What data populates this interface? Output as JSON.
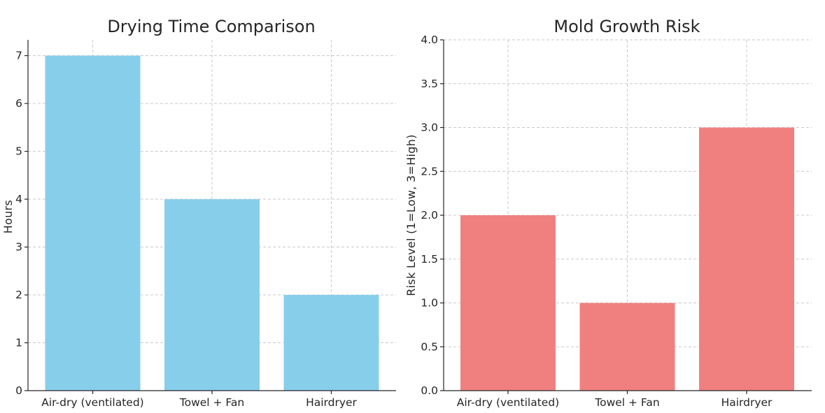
{
  "chart_data": [
    {
      "type": "bar",
      "title": "Drying Time Comparison",
      "xlabel": "",
      "ylabel": "Hours",
      "categories": [
        "Air-dry (ventilated)",
        "Towel + Fan",
        "Hairdryer"
      ],
      "values": [
        7,
        4,
        2
      ],
      "ylim": [
        0,
        7.33
      ],
      "yticks": [
        0,
        1,
        2,
        3,
        4,
        5,
        6,
        7
      ],
      "ytick_labels": [
        "0",
        "1",
        "2",
        "3",
        "4",
        "5",
        "6",
        "7"
      ],
      "bar_color": "#87ceeb",
      "grid": true
    },
    {
      "type": "bar",
      "title": "Mold Growth Risk",
      "xlabel": "",
      "ylabel": "Risk Level (1=Low, 3=High)",
      "categories": [
        "Air-dry (ventilated)",
        "Towel + Fan",
        "Hairdryer"
      ],
      "values": [
        2,
        1,
        3
      ],
      "ylim": [
        0,
        4.0
      ],
      "yticks": [
        0,
        0.5,
        1,
        1.5,
        2,
        2.5,
        3,
        3.5,
        4
      ],
      "ytick_labels": [
        "0.0",
        "0.5",
        "1.0",
        "1.5",
        "2.0",
        "2.5",
        "3.0",
        "3.5",
        "4.0"
      ],
      "bar_color": "#f08080",
      "grid": true
    }
  ]
}
